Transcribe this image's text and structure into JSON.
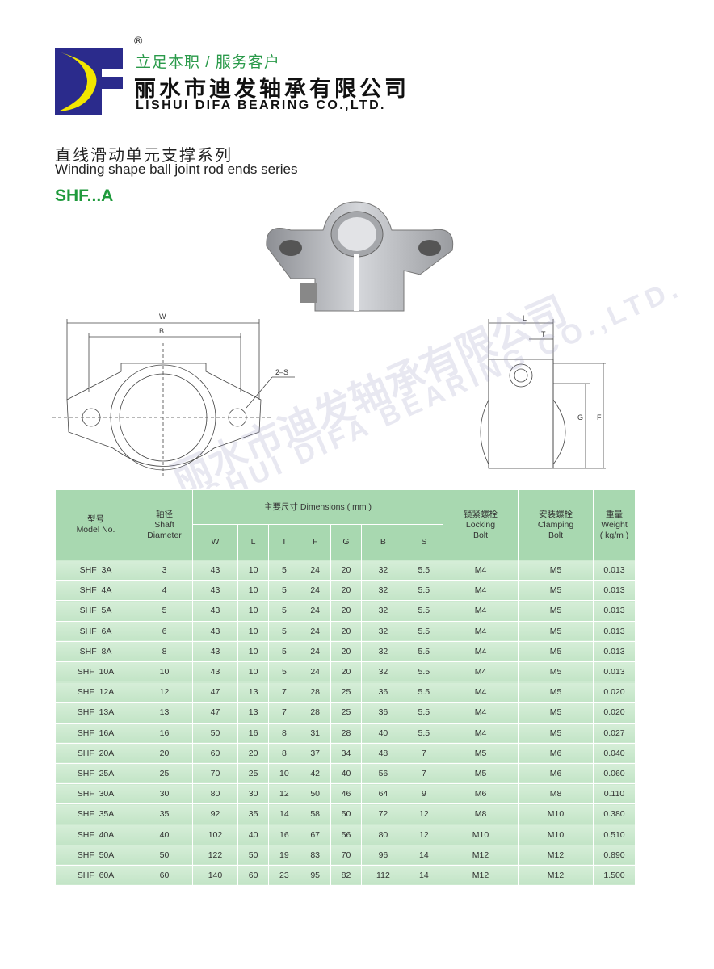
{
  "brand": {
    "logo_text": "DF",
    "registered": "®",
    "slogan": "立足本职 / 服务客户",
    "name_cn": "丽水市迪发轴承有限公司",
    "name_en": "LISHUI DIFA BEARING CO.,LTD.",
    "colors": {
      "logo_blue": "#2b2b8c",
      "logo_yellow": "#f2e600",
      "accent_green": "#1f9a3c"
    }
  },
  "series": {
    "title_cn": "直线滑动单元支撑系列",
    "title_en": "Winding shape ball joint rod ends series",
    "model": "SHF...A"
  },
  "watermark": {
    "cn": "丽水市迪发轴承有限公司",
    "en": "LISHUI DIFA BEARING CO.,LTD."
  },
  "drawing": {
    "labels": {
      "w": "W",
      "b": "B",
      "s": "2–S",
      "l": "L",
      "t": "T",
      "g": "G",
      "f": "F"
    }
  },
  "table": {
    "headers": {
      "model": [
        "型号",
        "Model No."
      ],
      "shaft": [
        "轴径",
        "Shaft",
        "Diameter"
      ],
      "dims": "主要尺寸  Dimensions ( mm )",
      "dim_cols": [
        "W",
        "L",
        "T",
        "F",
        "G",
        "B",
        "S"
      ],
      "locking": [
        "锁紧螺栓",
        "Locking",
        "Bolt"
      ],
      "clamping": [
        "安装螺栓",
        "Clamping",
        "Bolt"
      ],
      "weight": [
        "重量",
        "Weight",
        "( kg/m )"
      ]
    },
    "rows": [
      [
        "SHF  3A",
        "3",
        "43",
        "10",
        "5",
        "24",
        "20",
        "32",
        "5.5",
        "M4",
        "M5",
        "0.013"
      ],
      [
        "SHF  4A",
        "4",
        "43",
        "10",
        "5",
        "24",
        "20",
        "32",
        "5.5",
        "M4",
        "M5",
        "0.013"
      ],
      [
        "SHF  5A",
        "5",
        "43",
        "10",
        "5",
        "24",
        "20",
        "32",
        "5.5",
        "M4",
        "M5",
        "0.013"
      ],
      [
        "SHF  6A",
        "6",
        "43",
        "10",
        "5",
        "24",
        "20",
        "32",
        "5.5",
        "M4",
        "M5",
        "0.013"
      ],
      [
        "SHF  8A",
        "8",
        "43",
        "10",
        "5",
        "24",
        "20",
        "32",
        "5.5",
        "M4",
        "M5",
        "0.013"
      ],
      [
        "SHF  10A",
        "10",
        "43",
        "10",
        "5",
        "24",
        "20",
        "32",
        "5.5",
        "M4",
        "M5",
        "0.013"
      ],
      [
        "SHF  12A",
        "12",
        "47",
        "13",
        "7",
        "28",
        "25",
        "36",
        "5.5",
        "M4",
        "M5",
        "0.020"
      ],
      [
        "SHF  13A",
        "13",
        "47",
        "13",
        "7",
        "28",
        "25",
        "36",
        "5.5",
        "M4",
        "M5",
        "0.020"
      ],
      [
        "SHF  16A",
        "16",
        "50",
        "16",
        "8",
        "31",
        "28",
        "40",
        "5.5",
        "M4",
        "M5",
        "0.027"
      ],
      [
        "SHF  20A",
        "20",
        "60",
        "20",
        "8",
        "37",
        "34",
        "48",
        "7",
        "M5",
        "M6",
        "0.040"
      ],
      [
        "SHF  25A",
        "25",
        "70",
        "25",
        "10",
        "42",
        "40",
        "56",
        "7",
        "M5",
        "M6",
        "0.060"
      ],
      [
        "SHF  30A",
        "30",
        "80",
        "30",
        "12",
        "50",
        "46",
        "64",
        "9",
        "M6",
        "M8",
        "0.110"
      ],
      [
        "SHF  35A",
        "35",
        "92",
        "35",
        "14",
        "58",
        "50",
        "72",
        "12",
        "M8",
        "M10",
        "0.380"
      ],
      [
        "SHF  40A",
        "40",
        "102",
        "40",
        "16",
        "67",
        "56",
        "80",
        "12",
        "M10",
        "M10",
        "0.510"
      ],
      [
        "SHF  50A",
        "50",
        "122",
        "50",
        "19",
        "83",
        "70",
        "96",
        "14",
        "M12",
        "M12",
        "0.890"
      ],
      [
        "SHF  60A",
        "60",
        "140",
        "60",
        "23",
        "95",
        "82",
        "112",
        "14",
        "M12",
        "M12",
        "1.500"
      ]
    ]
  }
}
